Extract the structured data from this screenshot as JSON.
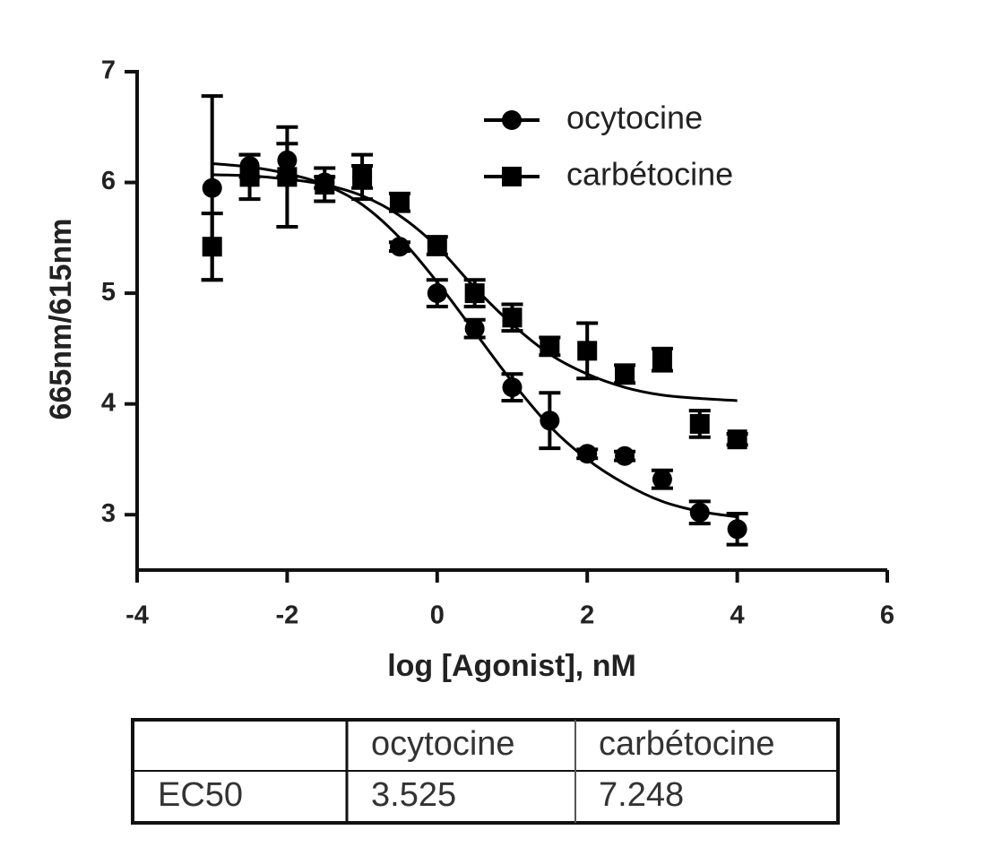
{
  "chart_data": {
    "type": "scatter",
    "xlabel": "log [Agonist], nM",
    "ylabel": "665nm/615nm",
    "xlim": [
      -4,
      6
    ],
    "xticks": [
      -4,
      -2,
      0,
      2,
      4,
      6
    ],
    "ylim": [
      2.5,
      7
    ],
    "yticks": [
      3,
      4,
      5,
      6,
      7
    ],
    "legend": "upper right",
    "series": [
      {
        "name": "ocytocine",
        "color": "#000000",
        "marker": "circle",
        "x": [
          -3,
          -2.5,
          -2,
          -1.5,
          -1,
          -0.5,
          0,
          0.5,
          1,
          1.5,
          2,
          2.5,
          3,
          3.5,
          4
        ],
        "values": [
          5.95,
          6.15,
          6.2,
          6.0,
          6.05,
          5.42,
          5.0,
          4.68,
          4.15,
          3.85,
          3.55,
          3.53,
          3.32,
          3.02,
          2.87
        ],
        "errors": [
          0.83,
          0.1,
          0.15,
          0.05,
          0.1,
          0.04,
          0.12,
          0.08,
          0.12,
          0.25,
          0.04,
          0.04,
          0.08,
          0.1,
          0.14
        ],
        "fit_x": [
          -3,
          -2.5,
          -2,
          -1.5,
          -1,
          -0.5,
          0,
          0.5,
          1,
          1.5,
          2,
          2.5,
          3,
          3.5,
          4
        ],
        "fit_values": [
          6.17,
          6.14,
          6.08,
          5.98,
          5.8,
          5.5,
          5.1,
          4.65,
          4.2,
          3.8,
          3.5,
          3.28,
          3.12,
          3.03,
          2.98
        ]
      },
      {
        "name": "carbétocine",
        "color": "#000000",
        "marker": "square",
        "x": [
          -3,
          -2.5,
          -2,
          -1.5,
          -1,
          -0.5,
          0,
          0.5,
          1,
          1.5,
          2,
          2.5,
          3,
          3.5,
          4
        ],
        "values": [
          5.42,
          6.05,
          6.05,
          5.98,
          6.05,
          5.82,
          5.43,
          5.0,
          4.78,
          4.52,
          4.48,
          4.27,
          4.4,
          3.82,
          3.68
        ],
        "errors": [
          0.3,
          0.2,
          0.45,
          0.15,
          0.2,
          0.08,
          0.08,
          0.12,
          0.12,
          0.08,
          0.25,
          0.08,
          0.1,
          0.12,
          0.05
        ],
        "fit_x": [
          -3,
          -2.5,
          -2,
          -1.5,
          -1,
          -0.5,
          0,
          0.5,
          1,
          1.5,
          2,
          2.5,
          3,
          3.5,
          4
        ],
        "fit_values": [
          6.07,
          6.06,
          6.03,
          5.98,
          5.88,
          5.7,
          5.42,
          5.05,
          4.72,
          4.45,
          4.27,
          4.15,
          4.08,
          4.05,
          4.03
        ]
      }
    ]
  },
  "table": {
    "columns": [
      "ocytocine",
      "carbétocine"
    ],
    "rows": [
      {
        "label": "EC50",
        "values": [
          3.525,
          7.248
        ]
      }
    ]
  }
}
